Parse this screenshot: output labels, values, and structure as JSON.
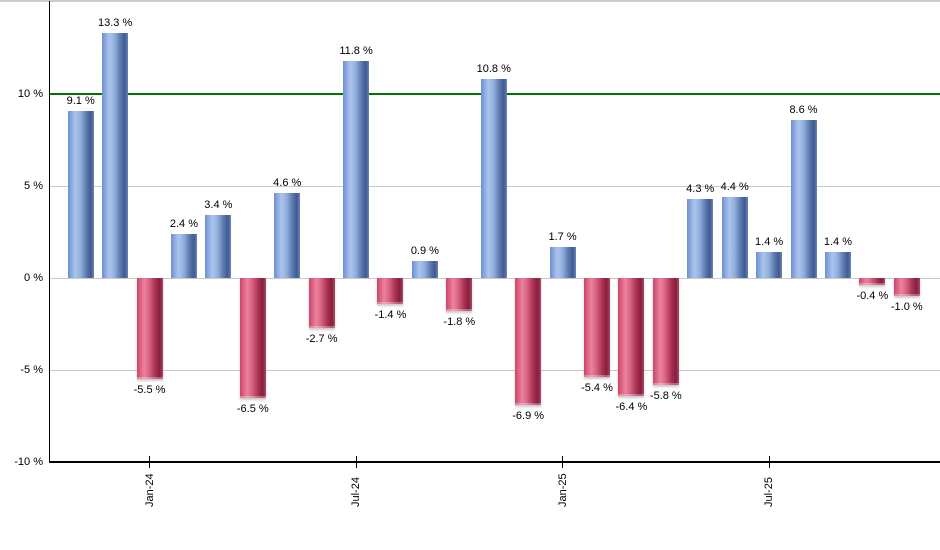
{
  "chart_data": {
    "type": "bar",
    "title": "",
    "xlabel": "",
    "ylabel": "",
    "values": [
      9.1,
      13.3,
      -5.5,
      2.4,
      3.4,
      -6.5,
      4.6,
      -2.7,
      11.8,
      -1.4,
      0.9,
      -1.8,
      10.8,
      -6.9,
      1.7,
      -5.4,
      -6.4,
      -5.8,
      4.3,
      4.4,
      1.4,
      8.6,
      1.4,
      -0.4,
      -1.0
    ],
    "point_labels": [
      "9.1 %",
      "13.3 %",
      "-5.5 %",
      "2.4 %",
      "3.4 %",
      "-6.5 %",
      "4.6 %",
      "-2.7 %",
      "11.8 %",
      "-1.4 %",
      "0.9 %",
      "-1.8 %",
      "10.8 %",
      "-6.9 %",
      "1.7 %",
      "-5.4 %",
      "-6.4 %",
      "-5.8 %",
      "4.3 %",
      "4.4 %",
      "1.4 %",
      "8.6 %",
      "1.4 %",
      "-0.4 %",
      "-1.0 %"
    ],
    "x_tick_labels": [
      {
        "bar_index": 2,
        "label": "Jan-24"
      },
      {
        "bar_index": 8,
        "label": "Jul-24"
      },
      {
        "bar_index": 14,
        "label": "Jan-25"
      },
      {
        "bar_index": 20,
        "label": "Jul-25"
      }
    ],
    "y_tick_labels": [
      {
        "value": 10,
        "label": "10 %"
      },
      {
        "value": 5,
        "label": "5 %"
      },
      {
        "value": 0,
        "label": "0 %"
      },
      {
        "value": -5,
        "label": "-5 %"
      },
      {
        "value": -10,
        "label": "-10 %"
      }
    ],
    "ylim": [
      -10,
      15
    ],
    "gridline_values": [
      5,
      0,
      -5
    ],
    "reference_line": {
      "value": 10
    },
    "grid": "horizontal",
    "legend": null,
    "colors": {
      "positive_light": "#aac4ee",
      "positive_dark": "#3f5a92",
      "negative_light": "#ec82a0",
      "negative_dark": "#861e3e",
      "reference_line": "#007300",
      "gridline": "#c9c9c9",
      "axis": "#000000",
      "top_border": "#cccccc",
      "background": "#ffffff",
      "label_text": "#000000"
    }
  }
}
